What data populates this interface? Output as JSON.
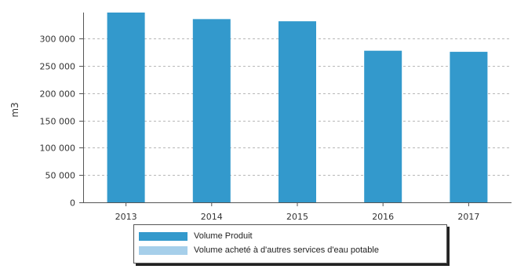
{
  "chart_data": {
    "type": "bar",
    "categories": [
      "2013",
      "2014",
      "2015",
      "2016",
      "2017"
    ],
    "series": [
      {
        "name": "Volume Produit",
        "values": [
          348000,
          336000,
          332000,
          278000,
          276000
        ],
        "color": "#3399cc"
      },
      {
        "name": "Volume acheté à d'autres services d'eau potable",
        "values": [
          0,
          0,
          0,
          0,
          0
        ],
        "color": "#a6cfea"
      }
    ],
    "title": "",
    "xlabel": "",
    "ylabel": "m3",
    "ylim": [
      0,
      348000
    ],
    "yticks": [
      {
        "value": 0,
        "label": "0"
      },
      {
        "value": 50000,
        "label": "50 000"
      },
      {
        "value": 100000,
        "label": "100 000"
      },
      {
        "value": 150000,
        "label": "150 000"
      },
      {
        "value": 200000,
        "label": "200 000"
      },
      {
        "value": 250000,
        "label": "250 000"
      },
      {
        "value": 300000,
        "label": "300 000"
      }
    ],
    "grid": true,
    "legend_position": "bottom"
  }
}
